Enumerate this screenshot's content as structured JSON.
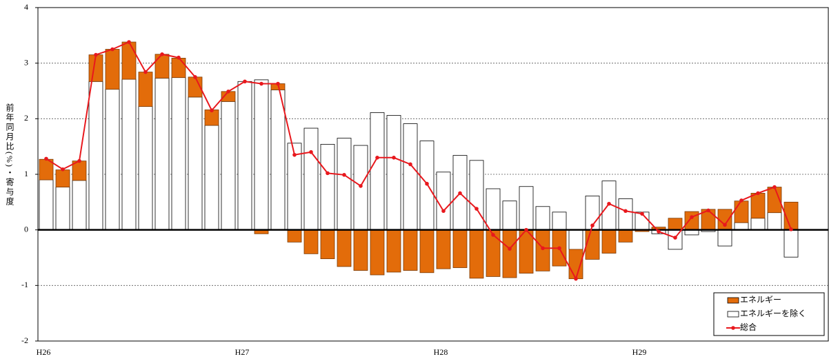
{
  "chart_data": {
    "type": "bar",
    "y_label": "前年同月比(%)・寄与度",
    "categories": [
      "H26",
      null,
      null,
      null,
      null,
      null,
      null,
      null,
      null,
      null,
      null,
      null,
      "H27",
      null,
      null,
      null,
      null,
      null,
      null,
      null,
      null,
      null,
      null,
      null,
      "H28",
      null,
      null,
      null,
      null,
      null,
      null,
      null,
      null,
      null,
      null,
      null,
      "H29",
      null,
      null,
      null,
      null,
      null,
      null,
      null,
      null,
      null
    ],
    "ylim": [
      -2,
      4
    ],
    "yticks": [
      -2,
      -1,
      0,
      1,
      2,
      3,
      4
    ],
    "grid": true,
    "legend": "lower right",
    "series": [
      {
        "name": "エネルギー",
        "type": "bar",
        "color": "#e36c0a",
        "values": [
          0.37,
          0.31,
          0.35,
          0.48,
          0.72,
          0.67,
          0.62,
          0.43,
          0.35,
          0.36,
          0.28,
          0.18,
          0.0,
          -0.07,
          0.11,
          -0.22,
          -0.43,
          -0.52,
          -0.66,
          -0.73,
          -0.81,
          -0.76,
          -0.73,
          -0.77,
          -0.7,
          -0.68,
          -0.87,
          -0.84,
          -0.86,
          -0.78,
          -0.74,
          -0.65,
          -0.53,
          -0.53,
          -0.42,
          -0.22,
          -0.03,
          0.05,
          0.21,
          0.33,
          0.37,
          0.37,
          0.39,
          0.45,
          0.46,
          0.5
        ]
      },
      {
        "name": "エネルギーを除く",
        "type": "bar",
        "color": "#ffffff",
        "values": [
          0.9,
          0.77,
          0.89,
          2.67,
          2.53,
          2.71,
          2.22,
          2.73,
          2.74,
          2.39,
          1.88,
          2.31,
          2.67,
          2.7,
          2.52,
          1.56,
          1.83,
          1.54,
          1.65,
          1.52,
          2.11,
          2.06,
          1.91,
          1.6,
          1.04,
          1.34,
          1.25,
          0.74,
          0.52,
          0.78,
          0.42,
          0.32,
          -0.35,
          0.61,
          0.88,
          0.56,
          0.32,
          -0.07,
          -0.35,
          -0.09,
          -0.03,
          -0.29,
          0.13,
          0.21,
          0.31,
          -0.49
        ]
      },
      {
        "name": "総合",
        "type": "line",
        "color": "#e8181d",
        "values": [
          1.28,
          1.09,
          1.24,
          3.15,
          3.25,
          3.38,
          2.84,
          3.16,
          3.1,
          2.75,
          2.15,
          2.49,
          2.67,
          2.63,
          2.63,
          1.35,
          1.4,
          1.02,
          0.99,
          0.79,
          1.3,
          1.3,
          1.18,
          0.83,
          0.34,
          0.66,
          0.38,
          -0.09,
          -0.34,
          0.0,
          -0.33,
          -0.33,
          -0.88,
          0.08,
          0.47,
          0.34,
          0.29,
          -0.03,
          -0.14,
          0.23,
          0.35,
          0.09,
          0.53,
          0.66,
          0.77,
          0.01
        ]
      }
    ]
  }
}
